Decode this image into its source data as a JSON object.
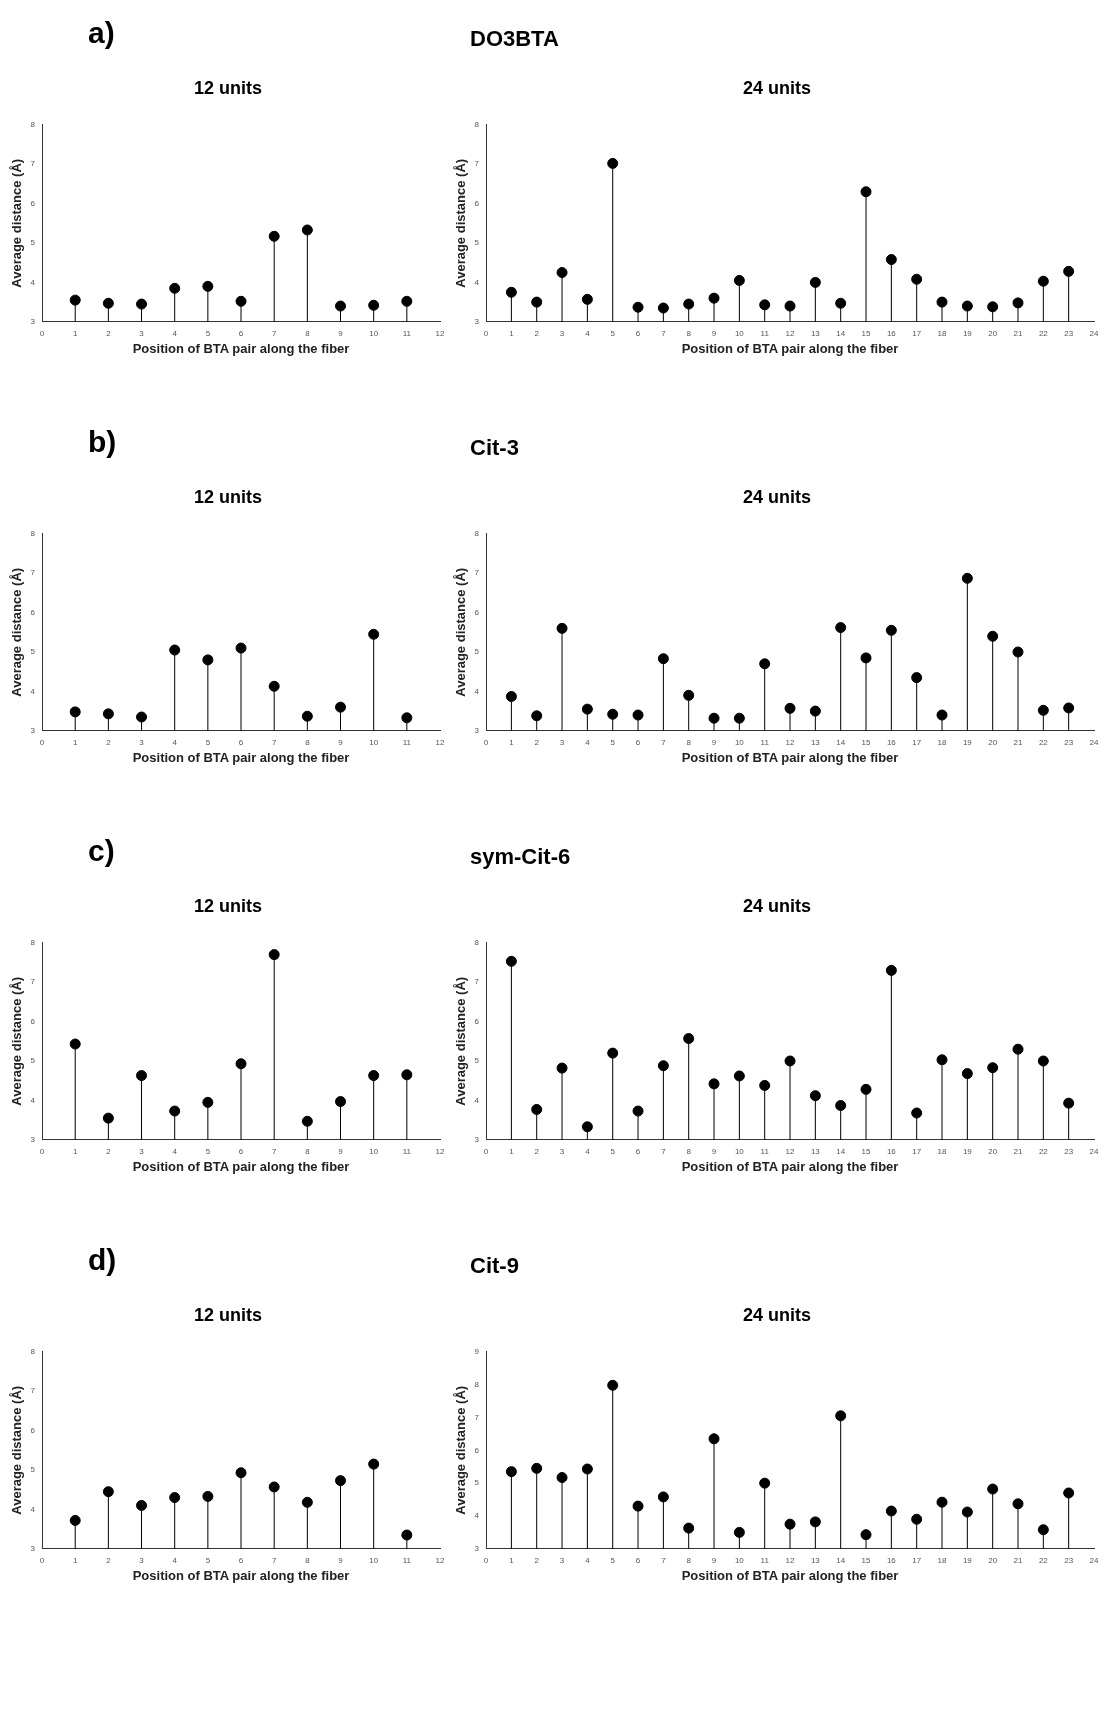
{
  "chart_data": [
    {
      "type": "lollipop",
      "annotations": [
        "a)",
        "DO3BTA"
      ],
      "title": "12 units",
      "xlabel": "Position of BTA pair along the fiber",
      "ylabel": "Average distance (Å)",
      "color": "#000000",
      "marker": "circle",
      "x": [
        1,
        2,
        3,
        4,
        5,
        6,
        7,
        8,
        9,
        10,
        11
      ],
      "values": [
        3.55,
        3.47,
        3.45,
        3.85,
        3.9,
        3.52,
        5.17,
        5.33,
        3.4,
        3.42,
        3.52
      ],
      "xlim": [
        0,
        12
      ],
      "xticks": [
        0,
        1,
        2,
        3,
        4,
        5,
        6,
        7,
        8,
        9,
        10,
        11,
        12
      ],
      "ylim": [
        3,
        8
      ],
      "yticks": [
        3,
        4,
        5,
        6,
        7,
        8
      ]
    },
    {
      "type": "lollipop",
      "title": "24 units",
      "xlabel": "Position of BTA pair along the fiber",
      "ylabel": "Average distance (Å)",
      "color": "#000000",
      "marker": "circle",
      "x": [
        1,
        2,
        3,
        4,
        5,
        6,
        7,
        8,
        9,
        10,
        11,
        12,
        13,
        14,
        15,
        16,
        17,
        18,
        19,
        20,
        21,
        22,
        23
      ],
      "values": [
        3.75,
        3.5,
        4.25,
        3.57,
        7.02,
        3.37,
        3.35,
        3.45,
        3.6,
        4.05,
        3.43,
        3.4,
        4.0,
        3.47,
        6.3,
        4.58,
        4.08,
        3.5,
        3.4,
        3.38,
        3.48,
        4.03,
        4.28
      ],
      "xlim": [
        0,
        24
      ],
      "xticks": [
        0,
        1,
        2,
        3,
        4,
        5,
        6,
        7,
        8,
        9,
        10,
        11,
        12,
        13,
        14,
        15,
        16,
        17,
        18,
        19,
        20,
        21,
        22,
        23,
        24
      ],
      "ylim": [
        3,
        8
      ],
      "yticks": [
        3,
        4,
        5,
        6,
        7,
        8
      ]
    },
    {
      "type": "lollipop",
      "annotations": [
        "b)",
        "Cit-3"
      ],
      "title": "12 units",
      "xlabel": "Position of BTA pair along the fiber",
      "ylabel": "Average distance (Å)",
      "color": "#000000",
      "marker": "circle",
      "x": [
        1,
        2,
        3,
        4,
        5,
        6,
        7,
        8,
        9,
        10,
        11
      ],
      "values": [
        3.48,
        3.43,
        3.35,
        5.05,
        4.8,
        5.1,
        4.13,
        3.37,
        3.6,
        5.45,
        3.33
      ],
      "xlim": [
        0,
        12
      ],
      "xticks": [
        0,
        1,
        2,
        3,
        4,
        5,
        6,
        7,
        8,
        9,
        10,
        11,
        12
      ],
      "ylim": [
        3,
        8
      ],
      "yticks": [
        3,
        4,
        5,
        6,
        7,
        8
      ]
    },
    {
      "type": "lollipop",
      "title": "24 units",
      "xlabel": "Position of BTA pair along the fiber",
      "ylabel": "Average distance (Å)",
      "color": "#000000",
      "marker": "circle",
      "x": [
        1,
        2,
        3,
        4,
        5,
        6,
        7,
        8,
        9,
        10,
        11,
        12,
        13,
        14,
        15,
        16,
        17,
        18,
        19,
        20,
        21,
        22,
        23
      ],
      "values": [
        3.87,
        3.38,
        5.6,
        3.55,
        3.42,
        3.4,
        4.83,
        3.9,
        3.32,
        3.32,
        4.7,
        3.57,
        3.5,
        5.62,
        4.85,
        5.55,
        4.35,
        3.4,
        6.87,
        5.4,
        5.0,
        3.52,
        3.58
      ],
      "xlim": [
        0,
        24
      ],
      "xticks": [
        0,
        1,
        2,
        3,
        4,
        5,
        6,
        7,
        8,
        9,
        10,
        11,
        12,
        13,
        14,
        15,
        16,
        17,
        18,
        19,
        20,
        21,
        22,
        23,
        24
      ],
      "ylim": [
        3,
        8
      ],
      "yticks": [
        3,
        4,
        5,
        6,
        7,
        8
      ]
    },
    {
      "type": "lollipop",
      "annotations": [
        "c)",
        "sym-Cit-6"
      ],
      "title": "12 units",
      "xlabel": "Position of BTA pair along the fiber",
      "ylabel": "Average distance (Å)",
      "color": "#000000",
      "marker": "circle",
      "x": [
        1,
        2,
        3,
        4,
        5,
        6,
        7,
        8,
        9,
        10,
        11
      ],
      "values": [
        5.43,
        3.55,
        4.63,
        3.73,
        3.95,
        4.93,
        7.7,
        3.47,
        3.97,
        4.63,
        4.65
      ],
      "xlim": [
        0,
        12
      ],
      "xticks": [
        0,
        1,
        2,
        3,
        4,
        5,
        6,
        7,
        8,
        9,
        10,
        11,
        12
      ],
      "ylim": [
        3,
        8
      ],
      "yticks": [
        3,
        4,
        5,
        6,
        7,
        8
      ]
    },
    {
      "type": "lollipop",
      "title": "24 units",
      "xlabel": "Position of BTA pair along the fiber",
      "ylabel": "Average distance (Å)",
      "color": "#000000",
      "marker": "circle",
      "x": [
        1,
        2,
        3,
        4,
        5,
        6,
        7,
        8,
        9,
        10,
        11,
        12,
        13,
        14,
        15,
        16,
        17,
        18,
        19,
        20,
        21,
        22,
        23
      ],
      "values": [
        7.53,
        3.77,
        4.82,
        3.33,
        5.2,
        3.73,
        4.88,
        5.57,
        4.42,
        4.62,
        4.38,
        5.0,
        4.12,
        3.87,
        4.28,
        7.3,
        3.68,
        5.03,
        4.68,
        4.83,
        5.3,
        5.0,
        3.93
      ],
      "xlim": [
        0,
        24
      ],
      "xticks": [
        0,
        1,
        2,
        3,
        4,
        5,
        6,
        7,
        8,
        9,
        10,
        11,
        12,
        13,
        14,
        15,
        16,
        17,
        18,
        19,
        20,
        21,
        22,
        23,
        24
      ],
      "ylim": [
        3,
        8
      ],
      "yticks": [
        3,
        4,
        5,
        6,
        7,
        8
      ]
    },
    {
      "type": "lollipop",
      "annotations": [
        "d)",
        "Cit-9"
      ],
      "title": "12 units",
      "xlabel": "Position of BTA pair along the fiber",
      "ylabel": "Average distance (Å)",
      "color": "#000000",
      "marker": "circle",
      "x": [
        1,
        2,
        3,
        4,
        5,
        6,
        7,
        8,
        9,
        10,
        11
      ],
      "values": [
        3.72,
        4.45,
        4.1,
        4.3,
        4.33,
        4.93,
        4.57,
        4.18,
        4.73,
        5.15,
        3.35
      ],
      "xlim": [
        0,
        12
      ],
      "xticks": [
        0,
        1,
        2,
        3,
        4,
        5,
        6,
        7,
        8,
        9,
        10,
        11,
        12
      ],
      "ylim": [
        3,
        8
      ],
      "yticks": [
        3,
        4,
        5,
        6,
        7,
        8
      ]
    },
    {
      "type": "lollipop",
      "title": "24 units",
      "xlabel": "Position of BTA pair along the fiber",
      "ylabel": "Average distance (Å)",
      "color": "#000000",
      "marker": "circle",
      "x": [
        1,
        2,
        3,
        4,
        5,
        6,
        7,
        8,
        9,
        10,
        11,
        12,
        13,
        14,
        15,
        16,
        17,
        18,
        19,
        20,
        21,
        22,
        23
      ],
      "values": [
        5.35,
        5.45,
        5.17,
        5.43,
        7.98,
        4.3,
        4.58,
        3.63,
        6.35,
        3.5,
        5.0,
        3.75,
        3.82,
        7.05,
        3.43,
        4.15,
        3.9,
        4.42,
        4.12,
        4.82,
        4.37,
        3.58,
        4.7
      ],
      "xlim": [
        0,
        24
      ],
      "xticks": [
        0,
        1,
        2,
        3,
        4,
        5,
        6,
        7,
        8,
        9,
        10,
        11,
        12,
        13,
        14,
        15,
        16,
        17,
        18,
        19,
        20,
        21,
        22,
        23,
        24
      ],
      "ylim": [
        3,
        9
      ],
      "yticks": [
        3,
        4,
        5,
        6,
        7,
        8,
        9
      ]
    }
  ]
}
